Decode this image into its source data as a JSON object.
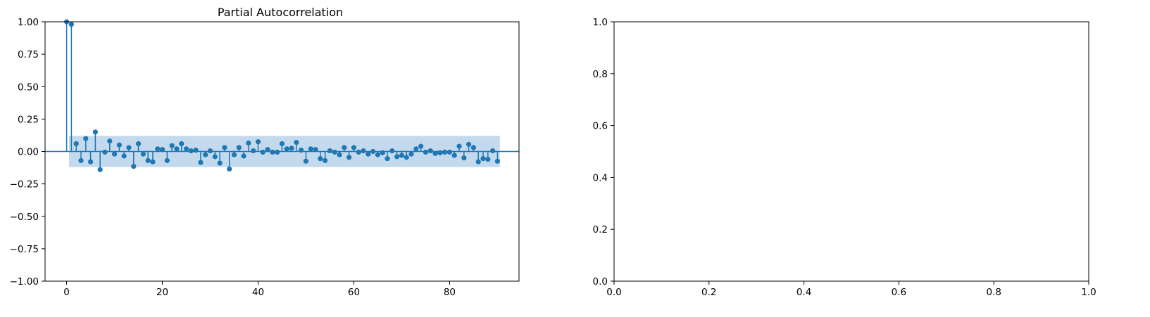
{
  "colors": {
    "series": "#1f77b4",
    "band": "#c3d9ed",
    "axis": "#000000",
    "background": "#ffffff"
  },
  "chart_data": [
    {
      "type": "stem",
      "title": "Partial Autocorrelation",
      "xlabel": "",
      "ylabel": "",
      "xlim": [
        -4.5,
        94.5
      ],
      "ylim": [
        -1.0,
        1.0
      ],
      "xticks": [
        0,
        20,
        40,
        60,
        80
      ],
      "xtick_labels": [
        "0",
        "20",
        "40",
        "60",
        "80"
      ],
      "yticks": [
        -1.0,
        -0.75,
        -0.5,
        -0.25,
        0.0,
        0.25,
        0.5,
        0.75,
        1.0
      ],
      "ytick_labels": [
        "−1.00",
        "−0.75",
        "−0.50",
        "−0.25",
        "0.00",
        "0.25",
        "0.50",
        "0.75",
        "1.00"
      ],
      "grid": false,
      "confidence_band": {
        "x_start": 0.5,
        "x_end": 90.5,
        "lower": -0.12,
        "upper": 0.12
      },
      "lags": [
        0,
        1,
        2,
        3,
        4,
        5,
        6,
        7,
        8,
        9,
        10,
        11,
        12,
        13,
        14,
        15,
        16,
        17,
        18,
        19,
        20,
        21,
        22,
        23,
        24,
        25,
        26,
        27,
        28,
        29,
        30,
        31,
        32,
        33,
        34,
        35,
        36,
        37,
        38,
        39,
        40,
        41,
        42,
        43,
        44,
        45,
        46,
        47,
        48,
        49,
        50,
        51,
        52,
        53,
        54,
        55,
        56,
        57,
        58,
        59,
        60,
        61,
        62,
        63,
        64,
        65,
        66,
        67,
        68,
        69,
        70,
        71,
        72,
        73,
        74,
        75,
        76,
        77,
        78,
        79,
        80,
        81,
        82,
        83,
        84,
        85,
        86,
        87,
        88,
        89,
        90
      ],
      "values": [
        1.0,
        0.98,
        0.06,
        -0.07,
        0.1,
        -0.08,
        0.15,
        -0.14,
        -0.005,
        0.08,
        -0.02,
        0.05,
        -0.035,
        0.03,
        -0.115,
        0.06,
        -0.02,
        -0.07,
        -0.08,
        0.02,
        0.015,
        -0.07,
        0.045,
        0.02,
        0.06,
        0.02,
        0.005,
        0.01,
        -0.085,
        -0.025,
        0.005,
        -0.04,
        -0.09,
        0.03,
        -0.135,
        -0.025,
        0.03,
        -0.035,
        0.065,
        0.005,
        0.075,
        -0.005,
        0.015,
        -0.005,
        -0.005,
        0.06,
        0.02,
        0.025,
        0.07,
        0.01,
        -0.075,
        0.02,
        0.015,
        -0.055,
        -0.07,
        0.005,
        -0.005,
        -0.025,
        0.03,
        -0.045,
        0.03,
        -0.005,
        0.005,
        -0.02,
        0.0,
        -0.025,
        -0.01,
        -0.055,
        0.005,
        -0.04,
        -0.03,
        -0.045,
        -0.02,
        0.02,
        0.04,
        -0.005,
        0.005,
        -0.015,
        -0.01,
        -0.005,
        -0.005,
        -0.03,
        0.04,
        -0.05,
        0.055,
        0.03,
        -0.08,
        -0.055,
        -0.06,
        0.005,
        -0.075
      ]
    },
    {
      "type": "empty",
      "title": "",
      "xlim": [
        0.0,
        1.0
      ],
      "ylim": [
        0.0,
        1.0
      ],
      "xticks": [
        0.0,
        0.2,
        0.4,
        0.6,
        0.8,
        1.0
      ],
      "xtick_labels": [
        "0.0",
        "0.2",
        "0.4",
        "0.6",
        "0.8",
        "1.0"
      ],
      "yticks": [
        0.0,
        0.2,
        0.4,
        0.6,
        0.8,
        1.0
      ],
      "ytick_labels": [
        "0.0",
        "0.2",
        "0.4",
        "0.6",
        "0.8",
        "1.0"
      ],
      "grid": false
    }
  ]
}
